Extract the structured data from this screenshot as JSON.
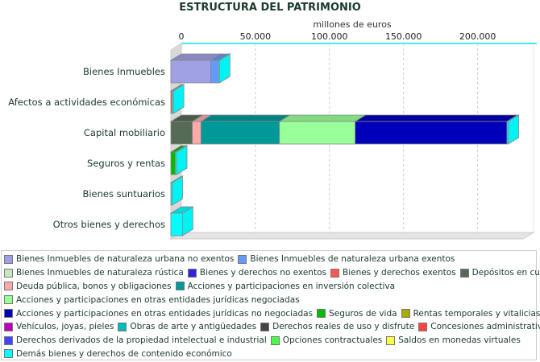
{
  "chart_data": {
    "type": "bar",
    "orientation": "horizontal",
    "stacked": true,
    "three_d": true,
    "title": "ESTRUCTURA DEL PATRIMONIO",
    "xlabel": "millones de euros",
    "xlim": [
      0,
      240000
    ],
    "x_ticks": [
      "0",
      "50.000",
      "100.000",
      "150.000",
      "200.000"
    ],
    "x_tick_values": [
      0,
      50000,
      100000,
      150000,
      200000
    ],
    "grid": true,
    "legend_position": "bottom",
    "categories": [
      "Bienes Inmuebles",
      "Afectos a actividades económicas",
      "Capital mobiliario",
      "Seguros y rentas",
      "Bienes suntuarios",
      "Otros bienes y derechos"
    ],
    "series": [
      {
        "name": "Bienes Inmuebles de naturaleza urbana no exentos",
        "color": "#a0a0e4",
        "values": [
          26900,
          0,
          0,
          0,
          0,
          0
        ]
      },
      {
        "name": "Bienes Inmuebles de naturaleza urbana exentos",
        "color": "#6699ff",
        "values": [
          5100,
          0,
          0,
          0,
          0,
          0
        ]
      },
      {
        "name": "Bienes Inmuebles de naturaleza rústica",
        "color": "#c4e8c4",
        "values": [
          0,
          0,
          0,
          0,
          0,
          0
        ]
      },
      {
        "name": "Bienes y derechos no exentos",
        "color": "#3322dd",
        "values": [
          0,
          0,
          0,
          0,
          0,
          0
        ]
      },
      {
        "name": "Bienes y derechos exentos",
        "color": "#ff5555",
        "values": [
          0,
          900,
          0,
          0,
          0,
          0
        ]
      },
      {
        "name": "Depósitos en cuenta",
        "color": "#556b55",
        "values": [
          0,
          0,
          14500,
          0,
          0,
          0
        ]
      },
      {
        "name": "Deuda pública, bonos y obligaciones",
        "color": "#ffaaaa",
        "values": [
          0,
          0,
          5800,
          0,
          0,
          0
        ]
      },
      {
        "name": "Acciones y participaciones en inversión colectiva",
        "color": "#009999",
        "values": [
          0,
          0,
          53000,
          0,
          0,
          0
        ]
      },
      {
        "name": "Acciones y participaciones en otras entidades jurídicas negociadas",
        "color": "#99ff99",
        "values": [
          0,
          0,
          51100,
          0,
          0,
          0
        ]
      },
      {
        "name": "Acciones y participaciones en otras entidades jurídicas no negociadas",
        "color": "#0000bb",
        "values": [
          0,
          0,
          102500,
          0,
          0,
          0
        ]
      },
      {
        "name": "Seguros de vida",
        "color": "#00bb00",
        "values": [
          0,
          0,
          0,
          3000,
          0,
          0
        ]
      },
      {
        "name": "Rentas temporales y vitalicias",
        "color": "#aaaa00",
        "values": [
          0,
          0,
          0,
          0,
          0,
          0
        ]
      },
      {
        "name": "Vehículos, joyas, pieles",
        "color": "#bb00bb",
        "values": [
          0,
          0,
          0,
          0,
          0,
          0
        ]
      },
      {
        "name": "Obras de arte y antigüedades",
        "color": "#00bbbb",
        "values": [
          0,
          0,
          0,
          0,
          0,
          0
        ]
      },
      {
        "name": "Derechos reales de uso y disfrute",
        "color": "#444444",
        "values": [
          0,
          0,
          0,
          0,
          0,
          0
        ]
      },
      {
        "name": "Concesiones administrativas",
        "color": "#ff4444",
        "values": [
          0,
          0,
          0,
          0,
          0,
          0
        ]
      },
      {
        "name": "Derechos derivados de la propiedad intelectual e industrial",
        "color": "#4444ff",
        "values": [
          0,
          0,
          0,
          0,
          0,
          0
        ]
      },
      {
        "name": "Opciones contractuales",
        "color": "#44ff44",
        "values": [
          0,
          0,
          0,
          0,
          0,
          0
        ]
      },
      {
        "name": "Saldos en monedas virtuales",
        "color": "#ffff44",
        "values": [
          0,
          0,
          0,
          0,
          0,
          0
        ]
      },
      {
        "name": "Demás bienes y derechos de contenido económico",
        "color": "#00ffff",
        "values": [
          500,
          500,
          500,
          600,
          500,
          7800
        ]
      }
    ]
  }
}
